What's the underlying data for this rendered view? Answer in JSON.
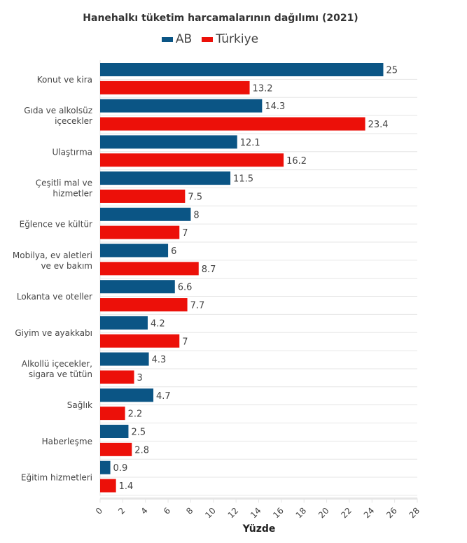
{
  "chart_data": {
    "type": "bar",
    "orientation": "horizontal",
    "title": "Hanehalkı tüketim harcamalarının dağılımı (2021)",
    "xlabel": "Yüzde",
    "ylabel": "",
    "xlim": [
      0,
      28
    ],
    "x_ticks": [
      0,
      2,
      4,
      6,
      8,
      10,
      12,
      14,
      16,
      18,
      20,
      22,
      24,
      26,
      28
    ],
    "legend_position": "top-center",
    "grid": true,
    "categories": [
      [
        "Konut ve kira"
      ],
      [
        "Gıda ve alkolsüz",
        "içecekler"
      ],
      [
        "Ulaştırma"
      ],
      [
        "Çeşitli mal ve",
        "hizmetler"
      ],
      [
        "Eğlence ve kültür"
      ],
      [
        "Mobilya, ev aletleri",
        "ve ev bakım"
      ],
      [
        "Lokanta ve oteller"
      ],
      [
        "Giyim ve ayakkabı"
      ],
      [
        "Alkollü içecekler,",
        "sigara ve tütün"
      ],
      [
        "Sağlık"
      ],
      [
        "Haberleşme"
      ],
      [
        "Eğitim hizmetleri"
      ]
    ],
    "series": [
      {
        "name": "AB",
        "color": "#0b5585",
        "values": [
          25,
          14.3,
          12.1,
          11.5,
          8,
          6,
          6.6,
          4.2,
          4.3,
          4.7,
          2.5,
          0.9
        ]
      },
      {
        "name": "Türkiye",
        "color": "#ec1009",
        "values": [
          13.2,
          23.4,
          16.2,
          7.5,
          7,
          8.7,
          7.7,
          7,
          3,
          2.2,
          2.8,
          1.4
        ]
      }
    ]
  }
}
